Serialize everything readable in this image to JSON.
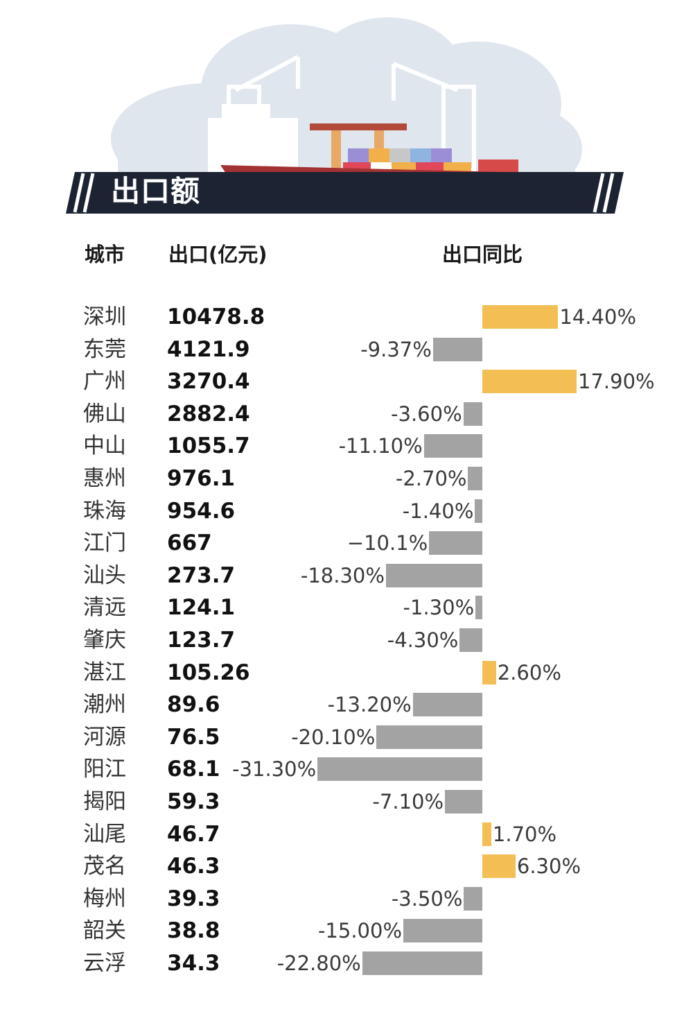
{
  "banner": {
    "title": "出口额"
  },
  "headers": {
    "city": "城市",
    "export": "出口(亿元)",
    "yoy": "出口同比"
  },
  "colors": {
    "positive": "#f3bf55",
    "negative": "#a3a3a3",
    "banner_dark": "#1c2333"
  },
  "chart_data": {
    "type": "bar",
    "categories": [
      "深圳",
      "东莞",
      "广州",
      "佛山",
      "中山",
      "惠州",
      "珠海",
      "江门",
      "汕头",
      "清远",
      "肇庆",
      "湛江",
      "潮州",
      "河源",
      "阳江",
      "揭阳",
      "汕尾",
      "茂名",
      "梅州",
      "韶关",
      "云浮"
    ],
    "export_values": [
      "10478.8",
      "4121.9",
      "3270.4",
      "2882.4",
      "1055.7",
      "976.1",
      "954.6",
      "667",
      "273.7",
      "124.1",
      "123.7",
      "105.26",
      "89.6",
      "76.5",
      "68.1",
      "59.3",
      "46.7",
      "46.3",
      "39.3",
      "38.8",
      "34.3"
    ],
    "yoy_labels": [
      "14.40%",
      "-9.37%",
      "17.90%",
      "-3.60%",
      "-11.10%",
      "-2.70%",
      "-1.40%",
      "−10.1%",
      "-18.30%",
      "-1.30%",
      "-4.30%",
      "2.60%",
      "-13.20%",
      "-20.10%",
      "-31.30%",
      "-7.10%",
      "1.70%",
      "6.30%",
      "-3.50%",
      "-15.00%",
      "-22.80%"
    ],
    "values": [
      14.4,
      -9.37,
      17.9,
      -3.6,
      -11.1,
      -2.7,
      -1.4,
      -10.1,
      -18.3,
      -1.3,
      -4.3,
      2.6,
      -13.2,
      -20.1,
      -31.3,
      -7.1,
      1.7,
      6.3,
      -3.5,
      -15.0,
      -22.8
    ],
    "series": [
      {
        "name": "出口同比",
        "values": [
          14.4,
          -9.37,
          17.9,
          -3.6,
          -11.1,
          -2.7,
          -1.4,
          -10.1,
          -18.3,
          -1.3,
          -4.3,
          2.6,
          -13.2,
          -20.1,
          -31.3,
          -7.1,
          1.7,
          6.3,
          -3.5,
          -15.0,
          -22.8
        ]
      }
    ],
    "title": "出口额",
    "xlabel": "",
    "ylabel": "",
    "grid": false
  }
}
